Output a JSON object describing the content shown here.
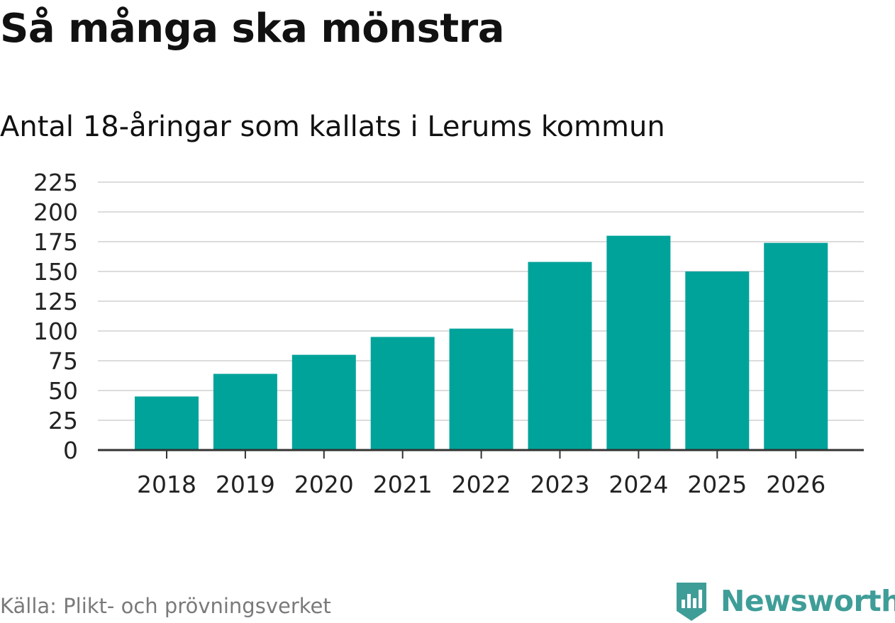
{
  "chart_data": {
    "type": "bar",
    "title": "Så många ska mönstra",
    "subtitle": "Antal 18-åringar som kallats i Lerums kommun",
    "categories": [
      "2018",
      "2019",
      "2020",
      "2021",
      "2022",
      "2023",
      "2024",
      "2025",
      "2026"
    ],
    "values": [
      45,
      64,
      80,
      95,
      102,
      158,
      180,
      150,
      174
    ],
    "yticks": [
      "0",
      "25",
      "50",
      "75",
      "100",
      "125",
      "150",
      "175",
      "200",
      "225"
    ],
    "ylim": [
      0,
      225
    ],
    "xlabel": "",
    "ylabel": "",
    "grid": true,
    "bar_color": "#00a39a"
  },
  "footer": {
    "source": "Källa: Plikt- och prövningsverket",
    "brand": "Newsworthy",
    "brand_icon": "bar-chart-icon",
    "brand_color": "#3f9d98"
  }
}
